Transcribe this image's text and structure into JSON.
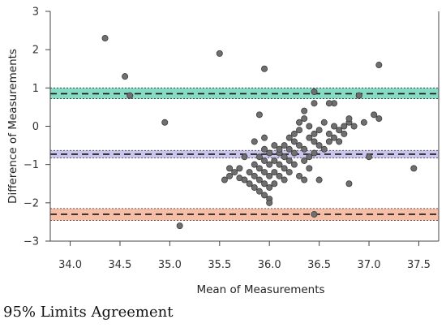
{
  "caption": "95% Limits Agreement",
  "chart_data": {
    "type": "scatter",
    "xlabel": "Mean of Measurements",
    "ylabel": "Difference of Measurements",
    "xlim": [
      33.8,
      37.7
    ],
    "ylim": [
      -3,
      3
    ],
    "x_ticks": [
      "34.0",
      "34.5",
      "35.0",
      "35.5",
      "36.0",
      "36.5",
      "37.0",
      "37.5"
    ],
    "y_ticks": [
      "3",
      "2",
      "1",
      "0",
      "−1",
      "−2",
      "−3"
    ],
    "grid": false,
    "reference_lines": [
      {
        "name": "upper limit of agreement",
        "y": 0.85,
        "ci": [
          0.72,
          1.0
        ],
        "color": "#5ccfb0"
      },
      {
        "name": "mean difference",
        "y": -0.73,
        "ci": [
          -0.83,
          -0.63
        ],
        "color": "#b7b2e6"
      },
      {
        "name": "lower limit of agreement",
        "y": -2.3,
        "ci": [
          -2.46,
          -2.15
        ],
        "color": "#f4a88a"
      }
    ],
    "points": [
      [
        34.35,
        2.3
      ],
      [
        34.55,
        1.3
      ],
      [
        34.6,
        0.8
      ],
      [
        34.95,
        0.1
      ],
      [
        35.1,
        -2.6
      ],
      [
        35.5,
        1.9
      ],
      [
        35.95,
        1.5
      ],
      [
        36.45,
        0.9
      ],
      [
        37.1,
        1.6
      ],
      [
        37.45,
        -1.1
      ],
      [
        36.45,
        -2.3
      ],
      [
        35.55,
        -1.4
      ],
      [
        35.6,
        -1.3
      ],
      [
        35.6,
        -1.1
      ],
      [
        35.65,
        -1.2
      ],
      [
        35.7,
        -1.1
      ],
      [
        35.7,
        -1.35
      ],
      [
        35.75,
        -1.4
      ],
      [
        35.75,
        -0.8
      ],
      [
        35.8,
        -1.5
      ],
      [
        35.8,
        -1.2
      ],
      [
        35.85,
        -1.6
      ],
      [
        35.85,
        -1.3
      ],
      [
        35.85,
        -1.0
      ],
      [
        35.85,
        -0.4
      ],
      [
        35.9,
        -1.7
      ],
      [
        35.9,
        -1.4
      ],
      [
        35.9,
        -1.1
      ],
      [
        35.9,
        -0.8
      ],
      [
        35.9,
        0.3
      ],
      [
        35.95,
        -1.8
      ],
      [
        35.95,
        -1.5
      ],
      [
        35.95,
        -1.2
      ],
      [
        35.95,
        -0.9
      ],
      [
        35.95,
        -0.6
      ],
      [
        35.95,
        -0.3
      ],
      [
        36.0,
        -1.9
      ],
      [
        36.0,
        -1.6
      ],
      [
        36.0,
        -1.3
      ],
      [
        36.0,
        -1.0
      ],
      [
        36.0,
        -0.7
      ],
      [
        36.0,
        -2.0
      ],
      [
        36.05,
        -1.5
      ],
      [
        36.05,
        -1.2
      ],
      [
        36.05,
        -0.9
      ],
      [
        36.05,
        -0.5
      ],
      [
        36.1,
        -1.3
      ],
      [
        36.1,
        -1.0
      ],
      [
        36.1,
        -0.7
      ],
      [
        36.1,
        -0.6
      ],
      [
        36.15,
        -1.4
      ],
      [
        36.15,
        -1.1
      ],
      [
        36.15,
        -0.8
      ],
      [
        36.15,
        -0.5
      ],
      [
        36.2,
        -1.2
      ],
      [
        36.2,
        -0.9
      ],
      [
        36.2,
        -0.6
      ],
      [
        36.2,
        -0.3
      ],
      [
        36.25,
        -1.0
      ],
      [
        36.25,
        -0.7
      ],
      [
        36.25,
        -0.4
      ],
      [
        36.25,
        -0.2
      ],
      [
        36.3,
        -1.3
      ],
      [
        36.3,
        -0.5
      ],
      [
        36.3,
        -0.1
      ],
      [
        36.3,
        0.1
      ],
      [
        36.35,
        -1.4
      ],
      [
        36.35,
        -0.9
      ],
      [
        36.35,
        -0.6
      ],
      [
        36.35,
        0.2
      ],
      [
        36.35,
        0.4
      ],
      [
        36.4,
        -1.1
      ],
      [
        36.4,
        -0.8
      ],
      [
        36.4,
        -0.3
      ],
      [
        36.4,
        0.0
      ],
      [
        36.45,
        -0.7
      ],
      [
        36.45,
        -0.4
      ],
      [
        36.45,
        -0.2
      ],
      [
        36.45,
        0.6
      ],
      [
        36.5,
        -1.4
      ],
      [
        36.5,
        -0.5
      ],
      [
        36.5,
        -0.1
      ],
      [
        36.55,
        -0.6
      ],
      [
        36.55,
        0.1
      ],
      [
        36.6,
        -0.4
      ],
      [
        36.6,
        -0.2
      ],
      [
        36.65,
        -0.3
      ],
      [
        36.65,
        0.0
      ],
      [
        36.65,
        0.6
      ],
      [
        36.7,
        -0.1
      ],
      [
        36.7,
        -0.4
      ],
      [
        36.75,
        -0.2
      ],
      [
        36.75,
        0.0
      ],
      [
        36.8,
        0.1
      ],
      [
        36.8,
        0.2
      ],
      [
        36.8,
        -1.5
      ],
      [
        36.85,
        0.0
      ],
      [
        36.9,
        0.8
      ],
      [
        36.95,
        0.1
      ],
      [
        37.0,
        -0.8
      ],
      [
        37.05,
        0.3
      ],
      [
        37.1,
        0.2
      ],
      [
        36.6,
        0.6
      ]
    ]
  }
}
